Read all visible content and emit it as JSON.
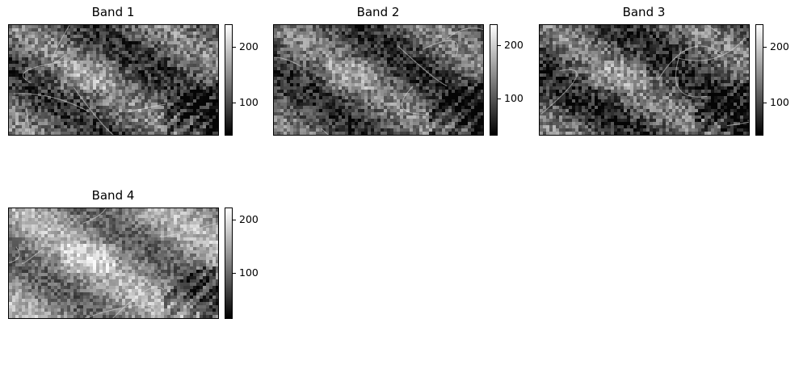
{
  "chart_data": [
    {
      "type": "heatmap",
      "title": "Band 1",
      "colormap": "gray",
      "colorbar_ticks": [
        100,
        200
      ],
      "colorbar_range": [
        40,
        240
      ]
    },
    {
      "type": "heatmap",
      "title": "Band 2",
      "colormap": "gray",
      "colorbar_ticks": [
        100,
        200
      ],
      "colorbar_range": [
        30,
        240
      ]
    },
    {
      "type": "heatmap",
      "title": "Band 3",
      "colormap": "gray",
      "colorbar_ticks": [
        100,
        200
      ],
      "colorbar_range": [
        40,
        240
      ]
    },
    {
      "type": "heatmap",
      "title": "Band 4",
      "colormap": "gray",
      "colorbar_ticks": [
        100,
        200
      ],
      "colorbar_range": [
        15,
        222
      ]
    }
  ]
}
